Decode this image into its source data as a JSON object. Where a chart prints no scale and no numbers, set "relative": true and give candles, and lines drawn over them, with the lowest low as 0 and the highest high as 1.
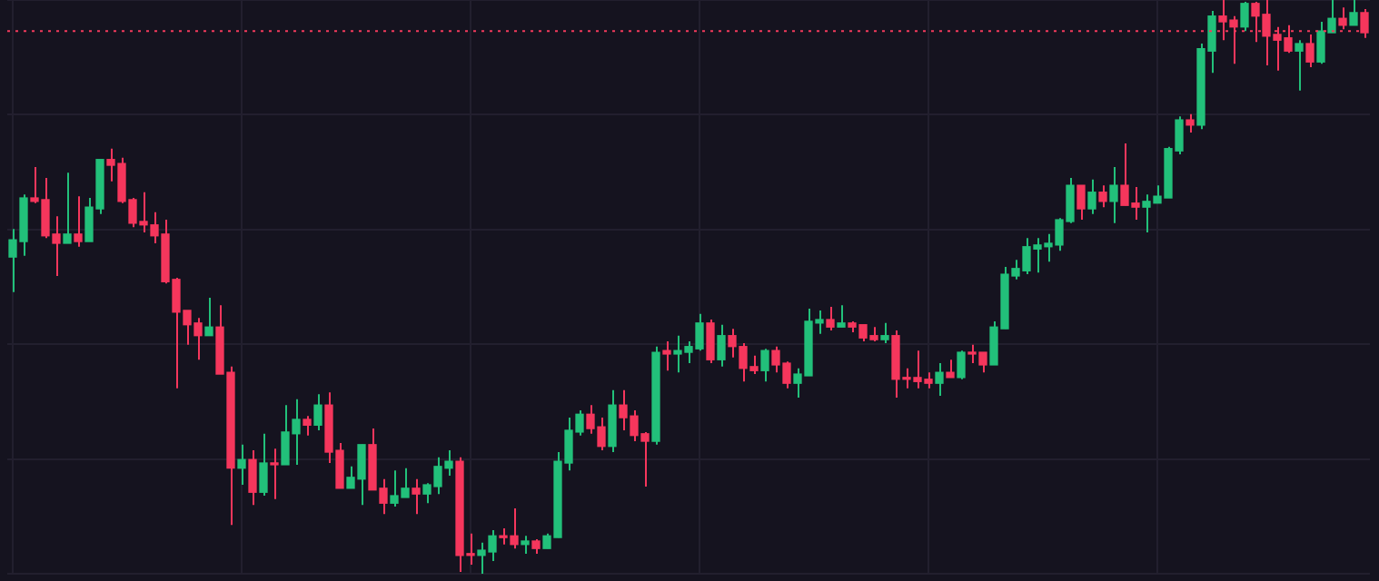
{
  "chart_data": {
    "type": "candlestick",
    "relative": true,
    "grid": true,
    "categories": [
      null,
      null,
      null,
      null,
      null,
      null,
      null,
      null,
      null,
      null,
      null,
      null,
      null,
      null,
      null,
      null,
      null,
      null,
      null,
      null,
      null,
      null,
      null,
      null,
      null,
      null,
      null,
      null,
      null,
      null,
      null,
      null,
      null,
      null,
      null,
      null,
      null,
      null,
      null,
      null,
      null,
      null,
      null,
      null,
      null,
      null,
      null,
      null,
      null,
      null,
      null,
      null,
      null,
      null,
      null,
      null,
      null,
      null,
      null,
      null,
      null,
      null,
      null,
      null,
      null,
      null,
      null,
      null,
      null,
      null,
      null,
      null,
      null,
      null,
      null,
      null,
      null,
      null,
      null,
      null,
      null,
      null,
      null,
      null,
      null,
      null,
      null,
      null,
      null,
      null,
      null,
      null,
      null,
      null,
      null,
      null,
      null,
      null,
      null,
      null,
      null,
      null,
      null,
      null,
      null,
      null,
      null,
      null,
      null,
      null,
      null,
      null,
      null,
      null,
      null,
      null,
      null,
      null,
      null,
      null,
      null,
      null,
      null,
      null,
      null
    ],
    "ohlc": [
      [
        0.552,
        0.601,
        0.491,
        0.582
      ],
      [
        0.579,
        0.661,
        0.554,
        0.655
      ],
      [
        0.655,
        0.709,
        0.646,
        0.649
      ],
      [
        0.652,
        0.69,
        0.585,
        0.589
      ],
      [
        0.592,
        0.623,
        0.519,
        0.576
      ],
      [
        0.576,
        0.699,
        0.576,
        0.592
      ],
      [
        0.592,
        0.658,
        0.57,
        0.579
      ],
      [
        0.579,
        0.655,
        0.579,
        0.639
      ],
      [
        0.636,
        0.722,
        0.627,
        0.722
      ],
      [
        0.722,
        0.741,
        0.684,
        0.712
      ],
      [
        0.715,
        0.725,
        0.646,
        0.649
      ],
      [
        0.652,
        0.655,
        0.604,
        0.611
      ],
      [
        0.614,
        0.665,
        0.595,
        0.608
      ],
      [
        0.608,
        0.63,
        0.576,
        0.589
      ],
      [
        0.592,
        0.617,
        0.506,
        0.509
      ],
      [
        0.513,
        0.516,
        0.323,
        0.456
      ],
      [
        0.459,
        0.459,
        0.399,
        0.434
      ],
      [
        0.437,
        0.446,
        0.373,
        0.415
      ],
      [
        0.415,
        0.481,
        0.415,
        0.43
      ],
      [
        0.43,
        0.468,
        0.348,
        0.348
      ],
      [
        0.351,
        0.361,
        0.085,
        0.184
      ],
      [
        0.184,
        0.225,
        0.155,
        0.199
      ],
      [
        0.199,
        0.215,
        0.12,
        0.142
      ],
      [
        0.142,
        0.244,
        0.136,
        0.193
      ],
      [
        0.193,
        0.218,
        0.13,
        0.19
      ],
      [
        0.19,
        0.294,
        0.19,
        0.247
      ],
      [
        0.244,
        0.304,
        0.19,
        0.269
      ],
      [
        0.269,
        0.275,
        0.241,
        0.259
      ],
      [
        0.259,
        0.313,
        0.25,
        0.294
      ],
      [
        0.294,
        0.316,
        0.193,
        0.212
      ],
      [
        0.215,
        0.228,
        0.149,
        0.149
      ],
      [
        0.149,
        0.187,
        0.149,
        0.168
      ],
      [
        0.165,
        0.225,
        0.12,
        0.225
      ],
      [
        0.225,
        0.253,
        0.146,
        0.146
      ],
      [
        0.149,
        0.165,
        0.104,
        0.123
      ],
      [
        0.123,
        0.18,
        0.117,
        0.136
      ],
      [
        0.133,
        0.184,
        0.133,
        0.149
      ],
      [
        0.149,
        0.165,
        0.104,
        0.139
      ],
      [
        0.139,
        0.158,
        0.123,
        0.155
      ],
      [
        0.152,
        0.203,
        0.139,
        0.187
      ],
      [
        0.184,
        0.215,
        0.171,
        0.196
      ],
      [
        0.196,
        0.203,
        0.003,
        0.032
      ],
      [
        0.035,
        0.07,
        0.016,
        0.032
      ],
      [
        0.032,
        0.054,
        0,
        0.041
      ],
      [
        0.038,
        0.076,
        0.022,
        0.066
      ],
      [
        0.066,
        0.079,
        0.051,
        0.063
      ],
      [
        0.066,
        0.114,
        0.044,
        0.051
      ],
      [
        0.051,
        0.066,
        0.035,
        0.057
      ],
      [
        0.057,
        0.06,
        0.035,
        0.044
      ],
      [
        0.044,
        0.07,
        0.044,
        0.066
      ],
      [
        0.063,
        0.212,
        0.063,
        0.196
      ],
      [
        0.193,
        0.272,
        0.18,
        0.25
      ],
      [
        0.247,
        0.285,
        0.241,
        0.278
      ],
      [
        0.278,
        0.294,
        0.244,
        0.253
      ],
      [
        0.256,
        0.272,
        0.215,
        0.222
      ],
      [
        0.222,
        0.32,
        0.212,
        0.294
      ],
      [
        0.294,
        0.32,
        0.25,
        0.272
      ],
      [
        0.275,
        0.285,
        0.231,
        0.241
      ],
      [
        0.244,
        0.247,
        0.152,
        0.231
      ],
      [
        0.231,
        0.396,
        0.225,
        0.386
      ],
      [
        0.389,
        0.405,
        0.354,
        0.383
      ],
      [
        0.383,
        0.415,
        0.351,
        0.389
      ],
      [
        0.386,
        0.405,
        0.367,
        0.396
      ],
      [
        0.392,
        0.453,
        0.389,
        0.437
      ],
      [
        0.437,
        0.443,
        0.367,
        0.373
      ],
      [
        0.373,
        0.434,
        0.361,
        0.415
      ],
      [
        0.415,
        0.427,
        0.377,
        0.396
      ],
      [
        0.396,
        0.402,
        0.335,
        0.358
      ],
      [
        0.361,
        0.38,
        0.348,
        0.354
      ],
      [
        0.354,
        0.392,
        0.335,
        0.389
      ],
      [
        0.389,
        0.396,
        0.351,
        0.364
      ],
      [
        0.367,
        0.37,
        0.323,
        0.332
      ],
      [
        0.332,
        0.358,
        0.307,
        0.348
      ],
      [
        0.345,
        0.462,
        0.345,
        0.44
      ],
      [
        0.437,
        0.459,
        0.418,
        0.443
      ],
      [
        0.443,
        0.465,
        0.424,
        0.43
      ],
      [
        0.43,
        0.468,
        0.43,
        0.437
      ],
      [
        0.437,
        0.44,
        0.421,
        0.43
      ],
      [
        0.434,
        0.434,
        0.405,
        0.411
      ],
      [
        0.415,
        0.43,
        0.405,
        0.408
      ],
      [
        0.408,
        0.437,
        0.402,
        0.415
      ],
      [
        0.415,
        0.424,
        0.307,
        0.339
      ],
      [
        0.342,
        0.358,
        0.323,
        0.339
      ],
      [
        0.342,
        0.389,
        0.323,
        0.335
      ],
      [
        0.339,
        0.351,
        0.323,
        0.332
      ],
      [
        0.332,
        0.367,
        0.31,
        0.351
      ],
      [
        0.351,
        0.373,
        0.342,
        0.342
      ],
      [
        0.342,
        0.389,
        0.339,
        0.386
      ],
      [
        0.386,
        0.399,
        0.367,
        0.383
      ],
      [
        0.386,
        0.386,
        0.351,
        0.364
      ],
      [
        0.364,
        0.44,
        0.364,
        0.43
      ],
      [
        0.427,
        0.535,
        0.427,
        0.522
      ],
      [
        0.519,
        0.547,
        0.513,
        0.532
      ],
      [
        0.528,
        0.585,
        0.522,
        0.57
      ],
      [
        0.566,
        0.585,
        0.525,
        0.573
      ],
      [
        0.57,
        0.592,
        0.544,
        0.576
      ],
      [
        0.573,
        0.62,
        0.563,
        0.617
      ],
      [
        0.614,
        0.69,
        0.611,
        0.677
      ],
      [
        0.677,
        0.677,
        0.617,
        0.636
      ],
      [
        0.636,
        0.687,
        0.627,
        0.665
      ],
      [
        0.665,
        0.677,
        0.639,
        0.649
      ],
      [
        0.649,
        0.709,
        0.611,
        0.677
      ],
      [
        0.677,
        0.75,
        0.642,
        0.642
      ],
      [
        0.646,
        0.674,
        0.617,
        0.639
      ],
      [
        0.639,
        0.661,
        0.595,
        0.649
      ],
      [
        0.646,
        0.677,
        0.646,
        0.658
      ],
      [
        0.655,
        0.744,
        0.655,
        0.741
      ],
      [
        0.737,
        0.797,
        0.731,
        0.791
      ],
      [
        0.791,
        0.801,
        0.769,
        0.782
      ],
      [
        0.782,
        0.924,
        0.775,
        0.915
      ],
      [
        0.911,
        0.981,
        0.873,
        0.972
      ],
      [
        0.972,
        1,
        0.93,
        0.962
      ],
      [
        0.965,
        0.972,
        0.889,
        0.953
      ],
      [
        0.953,
        0.997,
        0.946,
        0.994
      ],
      [
        0.994,
        0.997,
        0.927,
        0.972
      ],
      [
        0.975,
        1,
        0.886,
        0.937
      ],
      [
        0.94,
        0.953,
        0.877,
        0.93
      ],
      [
        0.934,
        0.956,
        0.908,
        0.911
      ],
      [
        0.911,
        0.93,
        0.842,
        0.924
      ],
      [
        0.924,
        0.94,
        0.883,
        0.892
      ],
      [
        0.892,
        0.962,
        0.889,
        0.946
      ],
      [
        0.943,
        1,
        0.943,
        0.968
      ],
      [
        0.968,
        0.987,
        0.949,
        0.956
      ],
      [
        0.956,
        1,
        0.956,
        0.978
      ],
      [
        0.978,
        0.984,
        0.934,
        0.943
      ]
    ],
    "ref_lines": [
      {
        "axis": "y",
        "value": 0.946,
        "color": "#f23a5c",
        "line_style": "dotted"
      }
    ]
  }
}
